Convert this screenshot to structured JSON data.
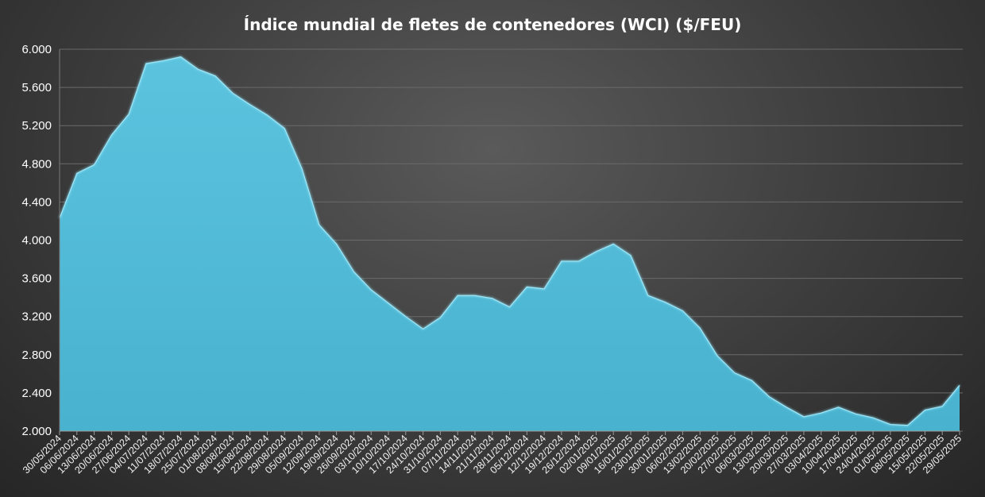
{
  "chart_data": {
    "type": "area",
    "title": "Índice mundial de fletes de contenedores (WCI) ($/FEU)",
    "xlabel": "",
    "ylabel": "",
    "ylim": [
      2000,
      6000
    ],
    "yticks": [
      2000,
      2400,
      2800,
      3200,
      3600,
      4000,
      4400,
      4800,
      5200,
      5600,
      6000
    ],
    "ytick_labels": [
      "2.000",
      "2.400",
      "2.800",
      "3.200",
      "3.600",
      "4.000",
      "4.400",
      "4.800",
      "5.200",
      "5.600",
      "6.000"
    ],
    "grid": "horizontal",
    "legend": "none",
    "colors": {
      "area": "#4fb9d6",
      "edge": "#8ee1f5",
      "grid": "#6a6a6a",
      "background": "#3c3c3c"
    },
    "categories": [
      "30/05/2024",
      "06/06/2024",
      "13/06/2024",
      "20/06/2024",
      "27/06/2024",
      "04/07/2024",
      "11/07/2024",
      "18/07/2024",
      "25/07/2024",
      "01/08/2024",
      "08/08/2024",
      "15/08/2024",
      "22/08/2024",
      "29/08/2024",
      "05/09/2024",
      "12/09/2024",
      "19/09/2024",
      "26/09/2024",
      "03/10/2024",
      "10/10/2024",
      "17/10/2024",
      "24/10/2024",
      "31/10/2024",
      "07/11/2024",
      "14/11/2024",
      "21/11/2024",
      "28/11/2024",
      "05/12/2024",
      "12/12/2024",
      "19/12/2024",
      "26/12/2024",
      "02/01/2025",
      "09/01/2025",
      "16/01/2025",
      "23/01/2025",
      "30/01/2025",
      "06/02/2025",
      "13/02/2025",
      "20/02/2025",
      "27/02/2025",
      "06/03/2025",
      "13/03/2025",
      "20/03/2025",
      "27/03/2025",
      "03/04/2025",
      "10/04/2025",
      "17/04/2025",
      "24/04/2025",
      "01/05/2025",
      "08/05/2025",
      "15/05/2025",
      "22/05/2025",
      "29/05/2025"
    ],
    "series": [
      {
        "values": [
          4230,
          4700,
          4790,
          5100,
          5320,
          5850,
          5880,
          5920,
          5790,
          5720,
          5540,
          5420,
          5310,
          5170,
          4750,
          4160,
          3960,
          3670,
          3480,
          3340,
          3200,
          3070,
          3190,
          3420,
          3420,
          3390,
          3300,
          3510,
          3490,
          3780,
          3780,
          3880,
          3960,
          3840,
          3420,
          3350,
          3260,
          3080,
          2790,
          2610,
          2530,
          2360,
          2250,
          2150,
          2190,
          2250,
          2180,
          2140,
          2070,
          2060,
          2220,
          2260,
          2480
        ]
      }
    ]
  }
}
